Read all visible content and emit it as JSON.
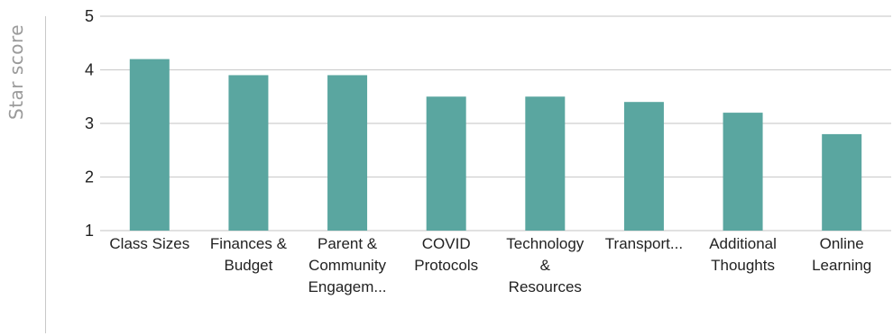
{
  "chart_data": {
    "type": "bar",
    "title": "",
    "xlabel": "",
    "ylabel": "Star score",
    "ylim": [
      1,
      5
    ],
    "yticks": [
      1,
      2,
      3,
      4,
      5
    ],
    "grid": true,
    "bar_color": "#5aa6a0",
    "grid_color": "#cfcfcf",
    "categories": [
      [
        "Class Sizes"
      ],
      [
        "Finances &",
        "Budget"
      ],
      [
        "Parent &",
        "Community",
        "Engagem..."
      ],
      [
        "COVID",
        "Protocols"
      ],
      [
        "Technology",
        "&",
        "Resources"
      ],
      [
        "Transport..."
      ],
      [
        "Additional",
        "Thoughts"
      ],
      [
        "Online",
        "Learning"
      ]
    ],
    "values": [
      4.2,
      3.9,
      3.9,
      3.5,
      3.5,
      3.4,
      3.2,
      2.8
    ]
  }
}
